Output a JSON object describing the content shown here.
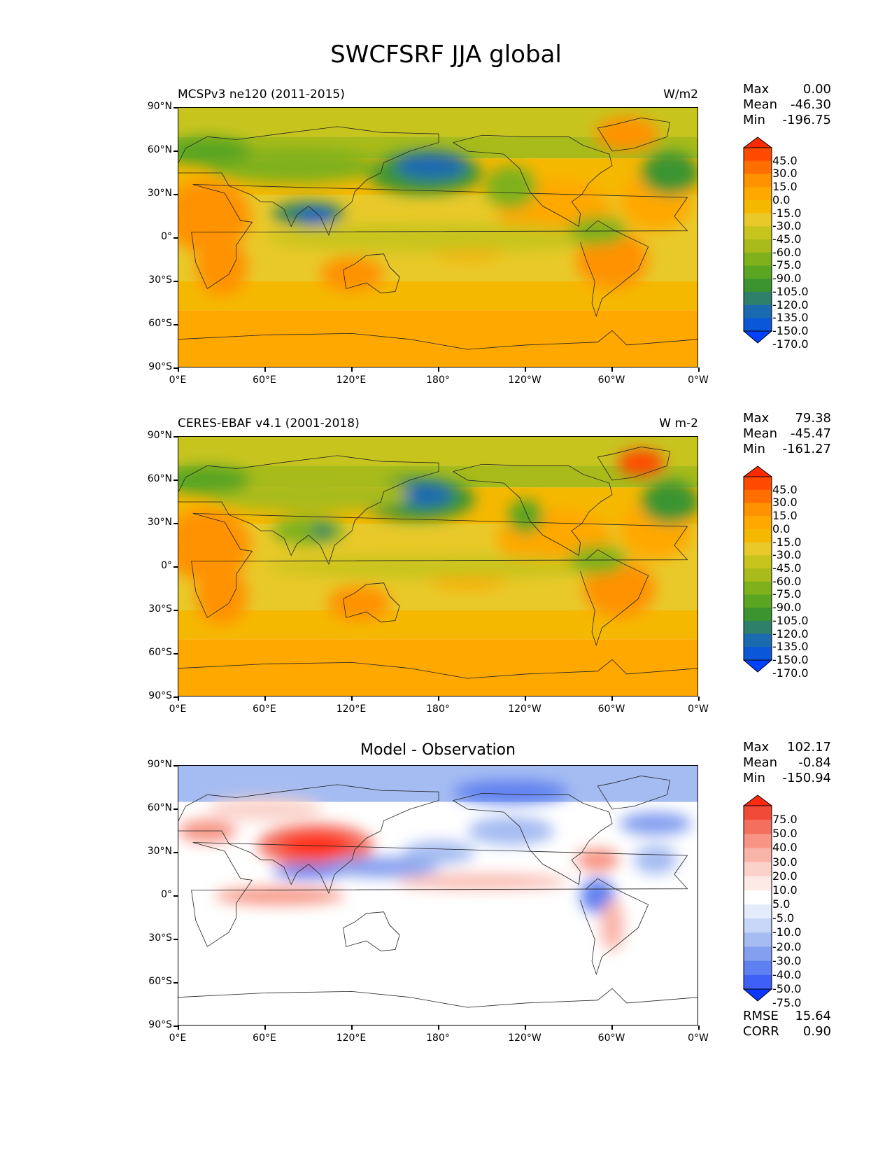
{
  "figure": {
    "title": "SWCFSRF JJA global"
  },
  "axes": {
    "lat_ticks": [
      "90°N",
      "60°N",
      "30°N",
      "0°",
      "30°S",
      "60°S",
      "90°S"
    ],
    "lon_ticks": [
      "0°E",
      "60°E",
      "120°E",
      "180°",
      "120°W",
      "60°W",
      "0°W"
    ]
  },
  "panels": [
    {
      "title_left": "MCSPv3 ne120 (2011-2015)",
      "title_right": "W/m2",
      "title_center": "",
      "stats": [
        {
          "label": "Max",
          "value": "0.00"
        },
        {
          "label": "Mean",
          "value": "-46.30"
        },
        {
          "label": "Min",
          "value": "-196.75"
        }
      ],
      "colorbar": {
        "labels": [
          "45.0",
          "30.0",
          "15.0",
          "0.0",
          "-15.0",
          "-30.0",
          "-45.0",
          "-60.0",
          "-75.0",
          "-90.0",
          "-105.0",
          "-120.0",
          "-135.0",
          "-150.0",
          "-170.0"
        ],
        "colors": [
          "#ff2a00",
          "#ff4a00",
          "#ff6e00",
          "#ff9200",
          "#ffa800",
          "#f5b800",
          "#e9c92a",
          "#c8c41e",
          "#a8bb1a",
          "#7fb11c",
          "#5aa522",
          "#3b9430",
          "#2f8068",
          "#1a6ab0",
          "#0a58d8",
          "#0040ff"
        ]
      }
    },
    {
      "title_left": "CERES-EBAF v4.1 (2001-2018)",
      "title_right": "W m-2",
      "title_center": "",
      "stats": [
        {
          "label": "Max",
          "value": "79.38"
        },
        {
          "label": "Mean",
          "value": "-45.47"
        },
        {
          "label": "Min",
          "value": "-161.27"
        }
      ],
      "colorbar": {
        "labels": [
          "45.0",
          "30.0",
          "15.0",
          "0.0",
          "-15.0",
          "-30.0",
          "-45.0",
          "-60.0",
          "-75.0",
          "-90.0",
          "-105.0",
          "-120.0",
          "-135.0",
          "-150.0",
          "-170.0"
        ],
        "colors": [
          "#ff2a00",
          "#ff4a00",
          "#ff6e00",
          "#ff9200",
          "#ffa800",
          "#f5b800",
          "#e9c92a",
          "#c8c41e",
          "#a8bb1a",
          "#7fb11c",
          "#5aa522",
          "#3b9430",
          "#2f8068",
          "#1a6ab0",
          "#0a58d8",
          "#0040ff"
        ]
      }
    },
    {
      "title_left": "",
      "title_right": "",
      "title_center": "Model - Observation",
      "stats": [
        {
          "label": "Max",
          "value": "102.17"
        },
        {
          "label": "Mean",
          "value": "-0.84"
        },
        {
          "label": "Min",
          "value": "-150.94"
        }
      ],
      "extra_stats": [
        {
          "label": "RMSE",
          "value": "15.64"
        },
        {
          "label": "CORR",
          "value": "0.90"
        }
      ],
      "colorbar": {
        "labels": [
          "75.0",
          "50.0",
          "40.0",
          "30.0",
          "20.0",
          "10.0",
          "5.0",
          "-5.0",
          "-10.0",
          "-20.0",
          "-30.0",
          "-40.0",
          "-50.0",
          "-75.0"
        ],
        "colors": [
          "#ff2a10",
          "#f24a38",
          "#f4705e",
          "#f79484",
          "#f9b4a8",
          "#fbd2ca",
          "#fdeae6",
          "#ffffff",
          "#e4ebfb",
          "#c7d6f7",
          "#a5bcf2",
          "#849fef",
          "#5f80f0",
          "#3e60f6",
          "#0a36ff"
        ]
      }
    }
  ]
}
